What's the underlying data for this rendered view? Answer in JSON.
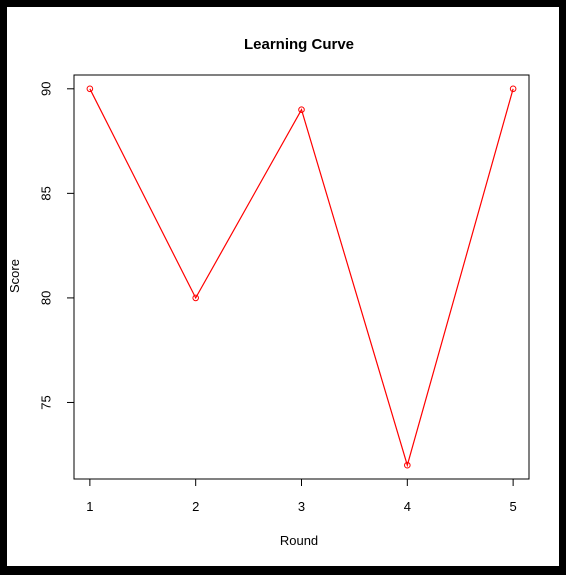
{
  "chart_data": {
    "type": "line",
    "title": "Learning Curve",
    "xlabel": "Round",
    "ylabel": "Score",
    "x": [
      1,
      2,
      3,
      4,
      5
    ],
    "series": [
      {
        "values": [
          90,
          80,
          89,
          72,
          90
        ],
        "color": "#ff0000",
        "marker": "open-circle"
      }
    ],
    "xlim": [
      0.85,
      5.15
    ],
    "ylim": [
      71.34,
      90.66
    ],
    "xticks": [
      1,
      2,
      3,
      4,
      5
    ],
    "yticks": [
      75,
      80,
      85,
      90
    ],
    "grid": false,
    "frame_color": "#000000",
    "background": "#ffffff",
    "border_color": "#000000"
  }
}
